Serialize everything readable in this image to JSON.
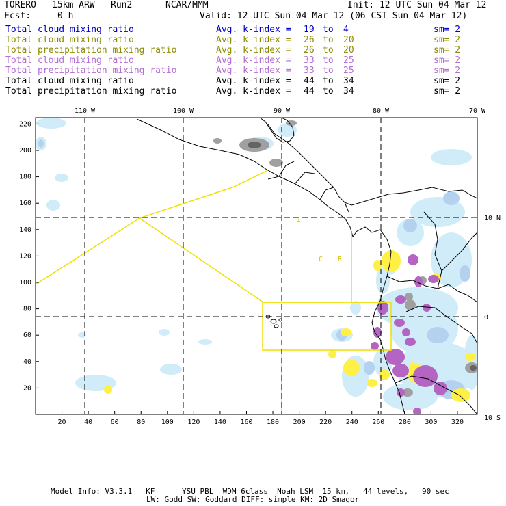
{
  "header": {
    "model": "TORERO",
    "resolution": "15km ARW",
    "run": "Run2",
    "org": "NCAR/MMM",
    "init": "Init: 12 UTC Sun 04 Mar 12",
    "fcst_label": "Fcst:",
    "fcst_value": "0 h",
    "valid": "Valid: 12 UTC Sun 04 Mar 12 (06 CST Sun 04 Mar 12)"
  },
  "legend": [
    {
      "field": "Total cloud mixing ratio",
      "avg": "Avg. k-index =",
      "from": "19",
      "to_word": "to",
      "to": "4",
      "sm": "sm= 2",
      "color": "#0000c8"
    },
    {
      "field": "Total cloud mixing ratio",
      "avg": "Avg. k-index =",
      "from": "26",
      "to_word": "to",
      "to": "20",
      "sm": "sm= 2",
      "color": "#8c8c00"
    },
    {
      "field": "Total precipitation mixing ratio",
      "avg": "Avg. k-index =",
      "from": "26",
      "to_word": "to",
      "to": "20",
      "sm": "sm= 2",
      "color": "#8c8c00"
    },
    {
      "field": "Total cloud mixing ratio",
      "avg": "Avg. k-index =",
      "from": "33",
      "to_word": "to",
      "to": "25",
      "sm": "sm= 2",
      "color": "#b46ed2"
    },
    {
      "field": "Total precipitation mixing ratio",
      "avg": "Avg. k-index =",
      "from": "33",
      "to_word": "to",
      "to": "25",
      "sm": "sm= 2",
      "color": "#b46ed2"
    },
    {
      "field": "Total cloud mixing ratio",
      "avg": "Avg. k-index =",
      "from": "44",
      "to_word": "to",
      "to": "34",
      "sm": "sm= 2",
      "color": "#000000"
    },
    {
      "field": "Total precipitation mixing ratio",
      "avg": "Avg. k-index =",
      "from": "44",
      "to_word": "to",
      "to": "34",
      "sm": "sm= 2",
      "color": "#000000"
    }
  ],
  "map": {
    "lon_labels": [
      "110 W",
      "100 W",
      "90 W",
      "80 W",
      "70 W"
    ],
    "lat_labels": [
      "10 N",
      "0",
      "10 S"
    ],
    "x_ticks": [
      "20",
      "40",
      "60",
      "80",
      "100",
      "120",
      "140",
      "160",
      "180",
      "200",
      "220",
      "240",
      "260",
      "280",
      "300",
      "320"
    ],
    "y_ticks": [
      "20",
      "40",
      "60",
      "80",
      "100",
      "120",
      "140",
      "160",
      "180",
      "200",
      "220"
    ],
    "region_labels": [
      "C",
      "R",
      "I"
    ],
    "colors": {
      "light_blue": "#d0ecf8",
      "mid_blue": "#b4d2f0",
      "yellow": "#fff046",
      "purple": "#b464c3",
      "gray": "#a0a0a0",
      "dark_gray": "#646464",
      "box_line": "#f0e000"
    }
  },
  "footer": {
    "line1": "Model Info: V3.3.1   KF      YSU PBL  WDM 6class  Noah LSM  15 km,   44 levels,   90 sec",
    "line2": "LW: Godd SW: Goddard DIFF: simple KM: 2D Smagor"
  }
}
